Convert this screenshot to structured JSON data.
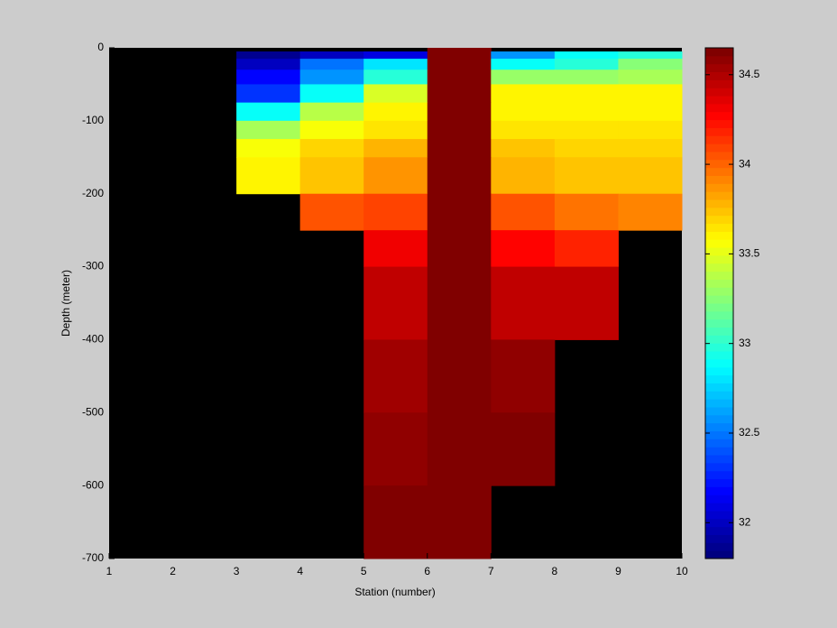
{
  "chart_data": {
    "type": "heatmap",
    "xlabel": "Station (number)",
    "ylabel": "Depth (meter)",
    "x_edges": [
      1,
      2,
      3,
      4,
      5,
      6,
      7,
      8,
      9,
      10
    ],
    "y_edges": [
      0,
      -5,
      -15,
      -30,
      -50,
      -75,
      -100,
      -125,
      -150,
      -200,
      -250,
      -300,
      -400,
      -500,
      -600,
      -700
    ],
    "xlim": [
      1,
      10
    ],
    "xticks": [
      1,
      2,
      3,
      4,
      5,
      6,
      7,
      8,
      9,
      10
    ],
    "ylim": [
      -700,
      0
    ],
    "yticks": [
      0,
      -100,
      -200,
      -300,
      -400,
      -500,
      -600,
      -700
    ],
    "colormap": "jet",
    "axis_color": "#000000",
    "clim": [
      31.8,
      34.65
    ],
    "colorbar_ticks": [
      32,
      32.5,
      33,
      33.5,
      34,
      34.5
    ],
    "values": [
      [
        null,
        null,
        null,
        null,
        null,
        34.65,
        null,
        null,
        null
      ],
      [
        null,
        null,
        31.85,
        32.0,
        32.1,
        34.65,
        32.6,
        32.9,
        33.0
      ],
      [
        null,
        null,
        32.0,
        32.5,
        32.8,
        34.65,
        32.9,
        33.0,
        33.25
      ],
      [
        null,
        null,
        32.2,
        32.6,
        33.0,
        34.65,
        33.3,
        33.3,
        33.35
      ],
      [
        null,
        null,
        32.3,
        32.9,
        33.45,
        34.65,
        33.6,
        33.6,
        33.6
      ],
      [
        null,
        null,
        32.9,
        33.4,
        33.6,
        34.65,
        33.6,
        33.6,
        33.6
      ],
      [
        null,
        null,
        33.35,
        33.55,
        33.65,
        34.65,
        33.65,
        33.65,
        33.65
      ],
      [
        null,
        null,
        33.55,
        33.7,
        33.8,
        34.65,
        33.75,
        33.7,
        33.7
      ],
      [
        null,
        null,
        33.6,
        33.75,
        33.85,
        34.65,
        33.8,
        33.75,
        33.75
      ],
      [
        null,
        null,
        null,
        34.05,
        34.1,
        34.65,
        34.05,
        33.95,
        33.9
      ],
      [
        null,
        null,
        null,
        null,
        34.3,
        34.65,
        34.25,
        34.2,
        null
      ],
      [
        null,
        null,
        null,
        null,
        34.45,
        34.65,
        34.45,
        34.45,
        null
      ],
      [
        null,
        null,
        null,
        null,
        34.55,
        34.65,
        34.57,
        null,
        null
      ],
      [
        null,
        null,
        null,
        null,
        34.6,
        34.65,
        34.62,
        null,
        null
      ],
      [
        null,
        null,
        null,
        null,
        34.63,
        34.65,
        null,
        null,
        null
      ]
    ]
  }
}
